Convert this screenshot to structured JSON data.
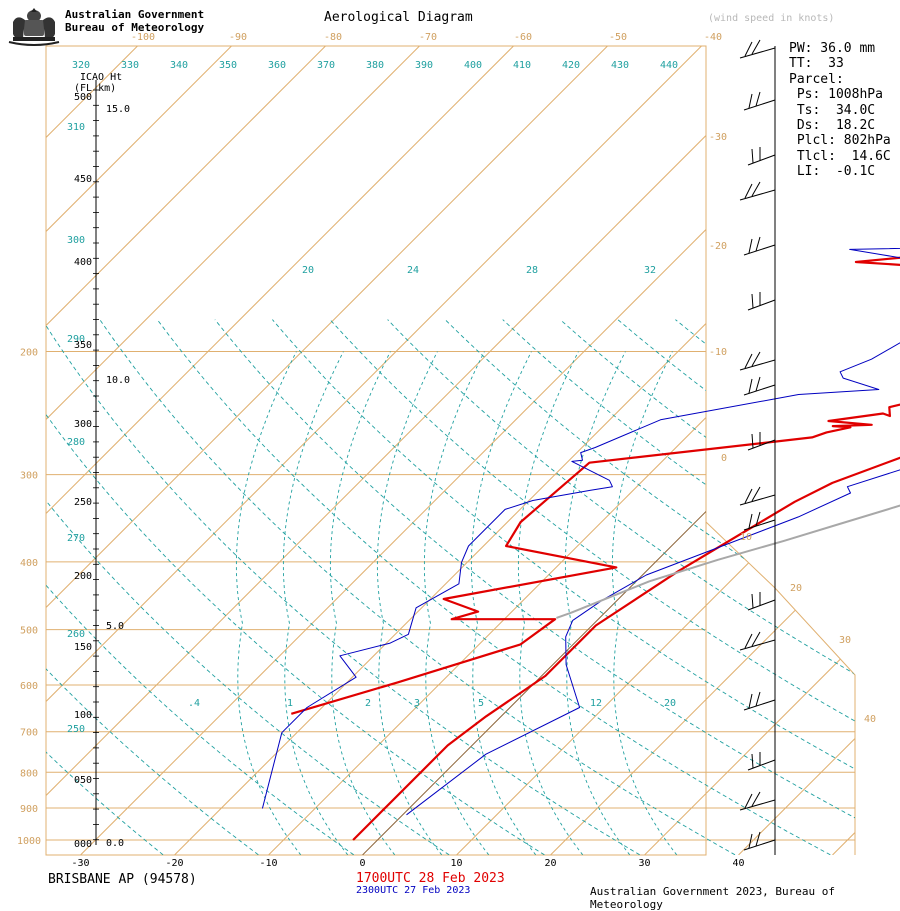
{
  "header": {
    "org_line1": "Australian Government",
    "org_line2": "Bureau of Meteorology",
    "title": "Aerological Diagram",
    "units_note": "(wind speed in knots)"
  },
  "parcel_info": {
    "lines": [
      "PW: 36.0 mm",
      "TT:  33",
      "Parcel:",
      " Ps: 1008hPa",
      " Ts:  34.0C",
      " Ds:  18.2C",
      " Plcl: 802hPa",
      " Tlcl:  14.6C",
      " LI:  -0.1C"
    ]
  },
  "footer": {
    "station": "BRISBANE AP (94578)",
    "time_primary": "1700UTC 28 Feb 2023",
    "time_secondary": "2300UTC 27 Feb 2023",
    "copyright": "Australian Government 2023, Bureau of Meteorology"
  },
  "colors": {
    "primary_sounding": "#e00000",
    "secondary_sounding": "#0000c0",
    "parcel": "#a8a8a8",
    "isotherm": "#e0b070",
    "isobar": "#e0b070",
    "adiabat": "#20a0a0",
    "temp_labels": "#d0a060",
    "theta_labels": "#20a0a0"
  },
  "chart_data": {
    "type": "line",
    "title": "Aerological Diagram",
    "xlabel": "",
    "ylabel": "",
    "x_axis_bottom_ticks": [
      "-30",
      "-20",
      "-10",
      "0",
      "10",
      "20",
      "30",
      "40"
    ],
    "x_axis_top_ticks": [
      "-100",
      "-90",
      "-80",
      "-70",
      "-60",
      "-50",
      "-40"
    ],
    "pressure_ticks": [
      "1000",
      "900",
      "800",
      "700",
      "600",
      "500",
      "400",
      "300",
      "200"
    ],
    "isotherm_labels_right": [
      "-30",
      "-20",
      "-10",
      "0",
      "10",
      "20",
      "30",
      "40"
    ],
    "theta_labels_top": [
      "320",
      "330",
      "340",
      "350",
      "360",
      "370",
      "380",
      "390",
      "400",
      "410",
      "420",
      "430",
      "440"
    ],
    "theta_labels_left": [
      "310",
      "300",
      "290",
      "280",
      "270",
      "260",
      "250"
    ],
    "mixing_ratio_labels_upper": [
      "20",
      "24",
      "28",
      "32"
    ],
    "mixing_ratio_labels_lower": [
      ".4",
      "1",
      "2",
      "3",
      "5",
      "12",
      "20"
    ],
    "height_axis": {
      "title": "ICAO Ht",
      "subtitle": "(FL  km)",
      "flight_levels": [
        "500",
        "450",
        "400",
        "350",
        "300",
        "250",
        "200",
        "150",
        "100",
        "050",
        "000"
      ],
      "km_labels": [
        "15.0",
        "10.0",
        "5.0",
        "0.0"
      ]
    },
    "series": [
      {
        "name": "1700UTC 28 Feb 2023 temperature",
        "color": "#e00000",
        "points": [
          [
            -21,
            100
          ],
          [
            -13,
            125
          ],
          [
            -4,
            155
          ],
          [
            -3,
            175
          ],
          [
            -14,
            175
          ],
          [
            -12,
            181
          ],
          [
            -17,
            191
          ],
          [
            -2,
            216
          ],
          [
            -16,
            233
          ],
          [
            -17,
            252
          ],
          [
            -16,
            299
          ],
          [
            5,
            319
          ],
          [
            6,
            323
          ],
          [
            8,
            327
          ],
          [
            6,
            328
          ],
          [
            10,
            329
          ],
          [
            5,
            332
          ],
          [
            10,
            338
          ],
          [
            11,
            336
          ],
          [
            10,
            343
          ],
          [
            13,
            350
          ],
          [
            16,
            355
          ],
          [
            18,
            359
          ],
          [
            17,
            363
          ],
          [
            18,
            390
          ],
          [
            16,
            405
          ],
          [
            13,
            431
          ],
          [
            14,
            440
          ],
          [
            15,
            447
          ],
          [
            11,
            449
          ],
          [
            -9,
            458
          ],
          [
            11,
            474
          ],
          [
            3,
            478
          ],
          [
            17,
            523
          ]
        ]
      },
      {
        "name": "1700UTC 28 Feb 2023 dew point",
        "color": "#e00000",
        "points": [
          [
            -1,
            0
          ],
          [
            -1,
            75
          ],
          [
            0,
            98
          ],
          [
            2,
            130
          ],
          [
            2,
            170
          ],
          [
            5,
            213
          ],
          [
            9,
            257
          ],
          [
            10,
            268
          ],
          [
            12,
            283
          ],
          [
            17,
            305
          ],
          [
            16,
            312
          ],
          [
            20,
            321
          ],
          [
            22,
            331
          ],
          [
            24,
            337
          ],
          [
            24,
            345
          ],
          [
            27,
            363
          ],
          [
            30,
            375
          ],
          [
            30,
            386
          ],
          [
            31,
            396
          ],
          [
            32,
            412
          ],
          [
            31,
            416
          ],
          [
            33,
            422
          ],
          [
            34,
            430
          ],
          [
            33,
            443
          ],
          [
            36,
            458
          ],
          [
            35,
            470
          ]
        ]
      },
      {
        "name": "2300UTC 27 Feb 2023 temperature",
        "color": "#0000c0",
        "points": [
          [
            -14,
            25
          ],
          [
            -20,
            85
          ],
          [
            -20,
            105
          ],
          [
            -18,
            129
          ],
          [
            -22,
            146
          ],
          [
            -18,
            156
          ],
          [
            -17,
            163
          ],
          [
            -19,
            184
          ],
          [
            -17,
            203
          ],
          [
            -19,
            220
          ],
          [
            -20,
            233
          ],
          [
            -20,
            262
          ],
          [
            -18,
            269
          ],
          [
            -13,
            277
          ],
          [
            -11,
            280
          ],
          [
            -12,
            285
          ],
          [
            -18,
            300
          ],
          [
            -17,
            301
          ],
          [
            -18,
            307
          ],
          [
            -17,
            311
          ],
          [
            -13,
            333
          ],
          [
            -1,
            353
          ],
          [
            7,
            357
          ],
          [
            2,
            366
          ],
          [
            1,
            371
          ],
          [
            3,
            381
          ],
          [
            6,
            411
          ],
          [
            9,
            442
          ],
          [
            7,
            449
          ],
          [
            -11,
            468
          ],
          [
            9,
            471
          ],
          [
            14,
            478
          ],
          [
            17,
            493
          ],
          [
            19,
            522
          ]
        ]
      },
      {
        "name": "2300UTC 27 Feb 2023 dew point",
        "color": "#0000c0",
        "points": [
          [
            2,
            20
          ],
          [
            4,
            68
          ],
          [
            9,
            105
          ],
          [
            3,
            139
          ],
          [
            0,
            161
          ],
          [
            -1,
            174
          ],
          [
            0,
            190
          ],
          [
            2,
            210
          ],
          [
            12,
            256
          ],
          [
            15,
            275
          ],
          [
            14,
            280
          ],
          [
            18,
            294
          ],
          [
            17,
            322
          ],
          [
            22,
            330
          ],
          [
            26,
            339
          ],
          [
            26,
            348
          ],
          [
            27,
            362
          ],
          [
            30,
            386
          ],
          [
            32,
            396
          ],
          [
            32,
            410
          ],
          [
            36,
            424
          ],
          [
            35,
            435
          ],
          [
            33,
            450
          ],
          [
            35,
            468
          ],
          [
            35,
            490
          ],
          [
            35,
            520
          ],
          [
            35,
            548
          ],
          [
            36,
            565
          ]
        ]
      },
      {
        "name": "Parcel",
        "color": "#a8a8a8",
        "points": [
          [
            -3,
            176
          ],
          [
            -2,
            180
          ],
          [
            0,
            190
          ],
          [
            3,
            205
          ],
          [
            8,
            222
          ],
          [
            13,
            237
          ],
          [
            17,
            250
          ],
          [
            21,
            263
          ],
          [
            24,
            273
          ],
          [
            28,
            285
          ],
          [
            30,
            292
          ],
          [
            34,
            304
          ],
          [
            37,
            313
          ],
          [
            40,
            322
          ],
          [
            42,
            334
          ],
          [
            44,
            345
          ],
          [
            46,
            356
          ],
          [
            48,
            372
          ],
          [
            49,
            388
          ],
          [
            50,
            402
          ],
          [
            51,
            415
          ],
          [
            52,
            429
          ],
          [
            52,
            439
          ],
          [
            51,
            447
          ],
          [
            51,
            449
          ],
          [
            52,
            460
          ],
          [
            57,
            473
          ],
          [
            62,
            486
          ],
          [
            66,
            499
          ],
          [
            70,
            511
          ]
        ]
      }
    ],
    "wind_barbs_note": "wind speed in knots",
    "grid": true
  }
}
